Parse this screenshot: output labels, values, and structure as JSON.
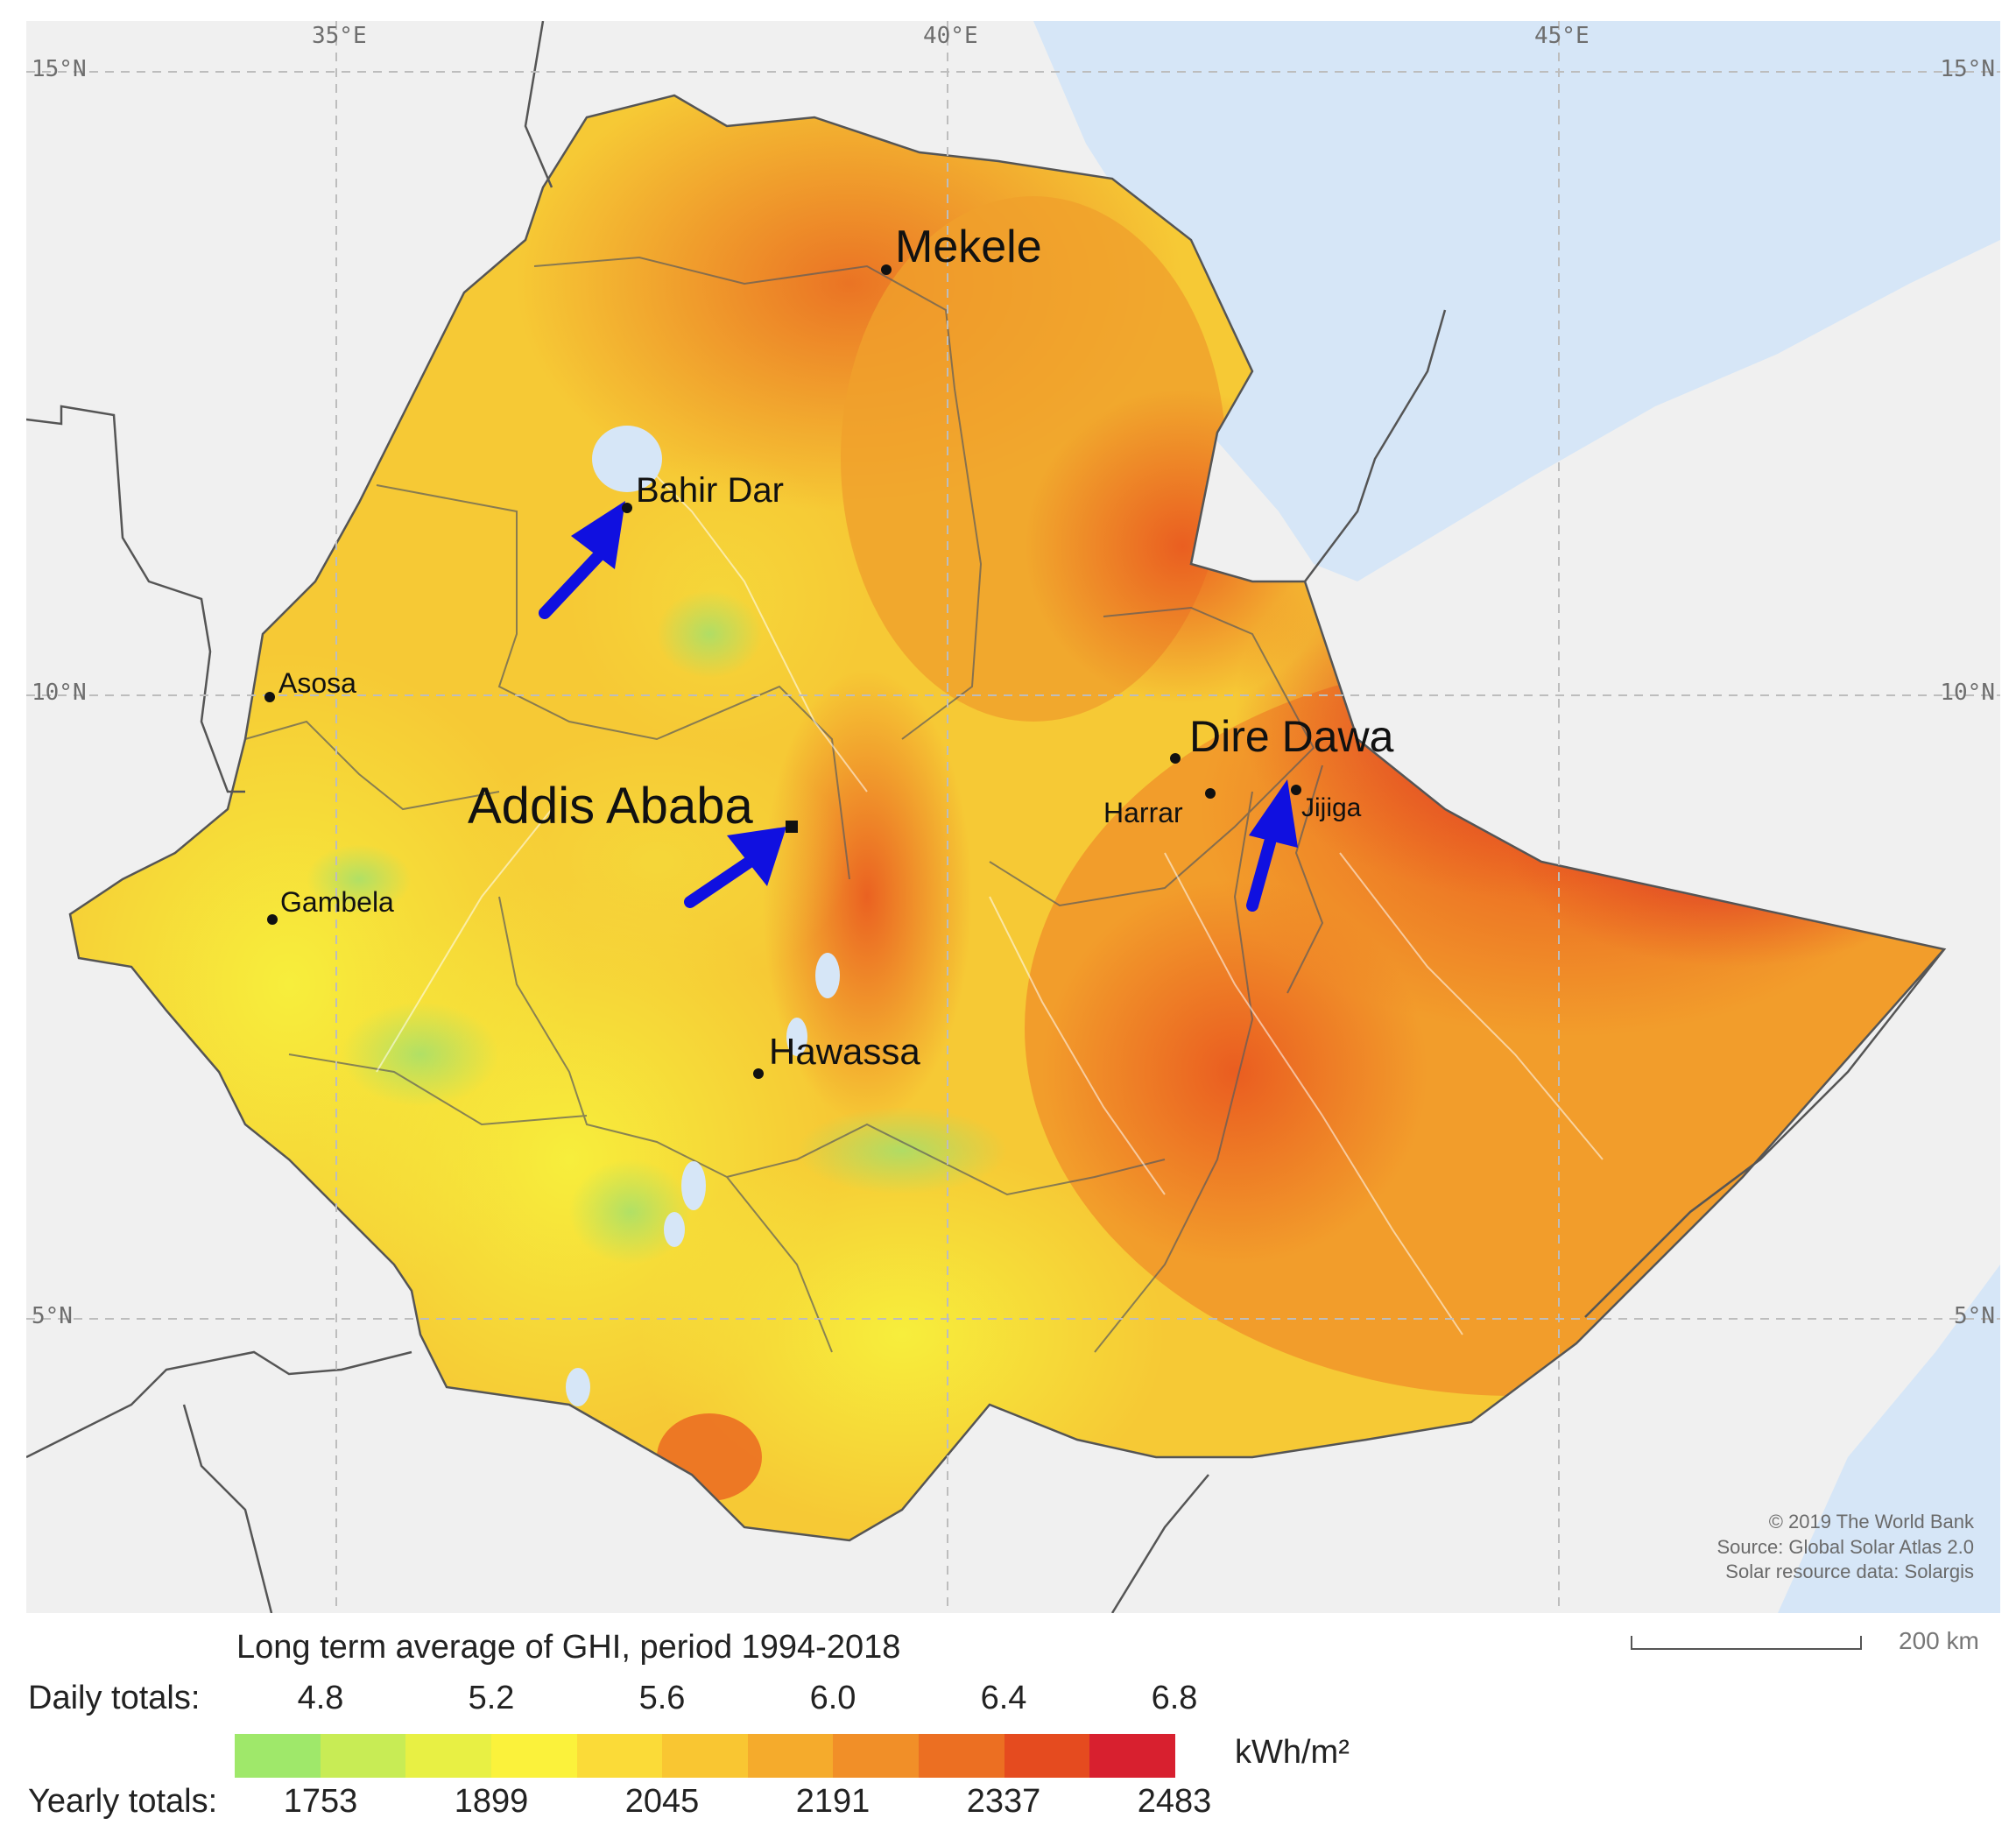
{
  "map": {
    "grid_labels": {
      "lon": [
        "35°E",
        "40°E",
        "45°E"
      ],
      "lat_left": [
        "15°N",
        "10°N",
        "5°N"
      ],
      "lat_right": [
        "15°N",
        "10°N",
        "5°N"
      ]
    },
    "cities": {
      "mekele": "Mekele",
      "bahir_dar": "Bahir Dar",
      "asosa": "Asosa",
      "addis_ababa": "Addis Ababa",
      "gambela": "Gambela",
      "hawassa": "Hawassa",
      "dire_dawa": "Dire Dawa",
      "harrar": "Harrar",
      "jijiga": "Jijiga"
    },
    "credits": {
      "line1": "© 2019 The World Bank",
      "line2": "Source: Global Solar Atlas 2.0",
      "line3": "Solar resource data: Solargis"
    },
    "arrow_color": "#1010e0",
    "sea_color": "#d6e6f7",
    "land_color": "#f0f0f0"
  },
  "legend": {
    "title": "Long term average of GHI, period 1994-2018",
    "daily_label": "Daily totals:",
    "yearly_label": "Yearly totals:",
    "daily_ticks": [
      "4.8",
      "5.2",
      "5.6",
      "6.0",
      "6.4",
      "6.8"
    ],
    "yearly_ticks": [
      "1753",
      "1899",
      "2045",
      "2191",
      "2337",
      "2483"
    ],
    "unit": "kWh/m²",
    "colors": [
      "#9fe86a",
      "#c8ec55",
      "#e8f044",
      "#fbf23b",
      "#fbdb38",
      "#f9c632",
      "#f5ab2c",
      "#f18f28",
      "#ec6f22",
      "#e54b1f",
      "#d8202f"
    ]
  },
  "scale": {
    "label": "200 km"
  }
}
